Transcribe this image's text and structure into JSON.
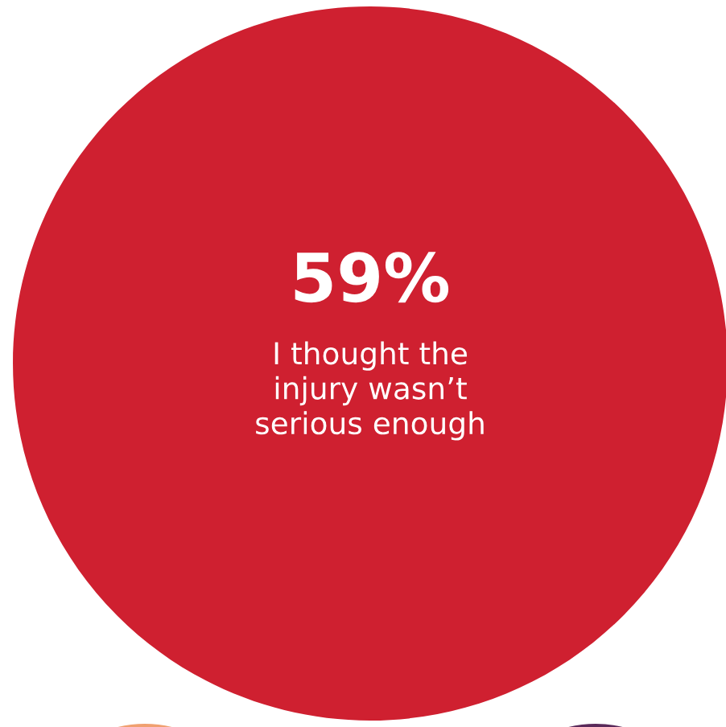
{
  "chart_data": {
    "type": "other",
    "categories": [
      "I thought the\ninjury wasn’t\nserious enough"
    ],
    "value_labels": [
      "59%"
    ],
    "values": [
      59
    ],
    "colors": [
      "#cf2030"
    ]
  }
}
